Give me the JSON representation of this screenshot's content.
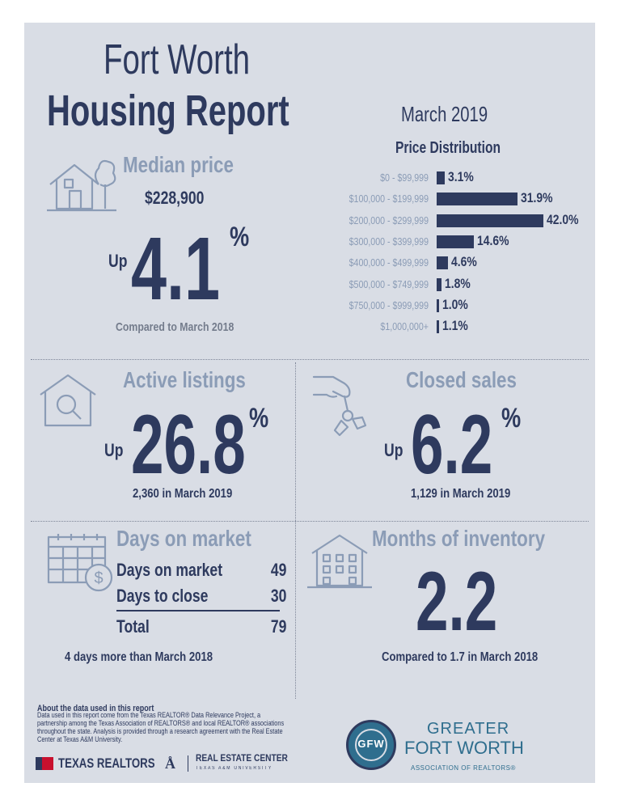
{
  "header": {
    "title_line1": "Fort Worth",
    "title_line2": "Housing Report",
    "period": "March 2019"
  },
  "median_price": {
    "title": "Median price",
    "price": "$228,900",
    "direction": "Up",
    "change": "4.1",
    "unit": "%",
    "comparison": "Compared to March 2018"
  },
  "price_distribution": {
    "title": "Price Distribution",
    "chart_data": {
      "type": "bar",
      "orientation": "horizontal",
      "title": "Price Distribution",
      "categories": [
        "$0 - $99,999",
        "$100,000 - $199,999",
        "$200,000 - $299,999",
        "$300,000 - $399,999",
        "$400,000 - $499,999",
        "$500,000 - $749,999",
        "$750,000 - $999,999",
        "$1,000,000+"
      ],
      "values": [
        3.1,
        31.9,
        42.0,
        14.6,
        4.6,
        1.8,
        1.0,
        1.1
      ],
      "value_labels": [
        "3.1%",
        "31.9%",
        "42.0%",
        "14.6%",
        "4.6%",
        "1.8%",
        "1.0%",
        "1.1%"
      ]
    }
  },
  "active_listings": {
    "title": "Active listings",
    "direction": "Up",
    "change": "26.8",
    "unit": "%",
    "detail": "2,360 in March 2019"
  },
  "closed_sales": {
    "title": "Closed sales",
    "direction": "Up",
    "change": "6.2",
    "unit": "%",
    "detail": "1,129 in March 2019"
  },
  "days_on_market": {
    "title": "Days on market",
    "rows": [
      {
        "label": "Days on market",
        "value": "49"
      },
      {
        "label": "Days to close",
        "value": "30"
      }
    ],
    "total_label": "Total",
    "total_value": "79",
    "comparison": "4 days more than March 2018"
  },
  "months_inventory": {
    "title": "Months of inventory",
    "value": "2.2",
    "comparison": "Compared to 1.7 in March 2018"
  },
  "footer": {
    "about_title": "About the data used in this report",
    "about_text": "Data used in this report come from the Texas REALTOR® Data Relevance Project, a partnership among the Texas Association of REALTORS® and local REALTOR® associations throughout the state. Analysis is provided through a research agreement with the Real Estate Center at Texas A&M University.",
    "texas_realtors": "TEXAS REALTORS",
    "rec_name": "REAL ESTATE CENTER",
    "rec_sub": "TEXAS A&M UNIVERSITY",
    "gfw_line1": "GREATER",
    "gfw_line2": "FORT WORTH",
    "gfw_line3": "ASSOCIATION OF REALTORS®",
    "gfw_emblem": "GFW"
  },
  "colors": {
    "background": "#d9dde5",
    "navy": "#2e3a5e",
    "steel": "#8b9cb6",
    "texas_red": "#c8102e",
    "gfw_teal": "#2f6e8e"
  }
}
